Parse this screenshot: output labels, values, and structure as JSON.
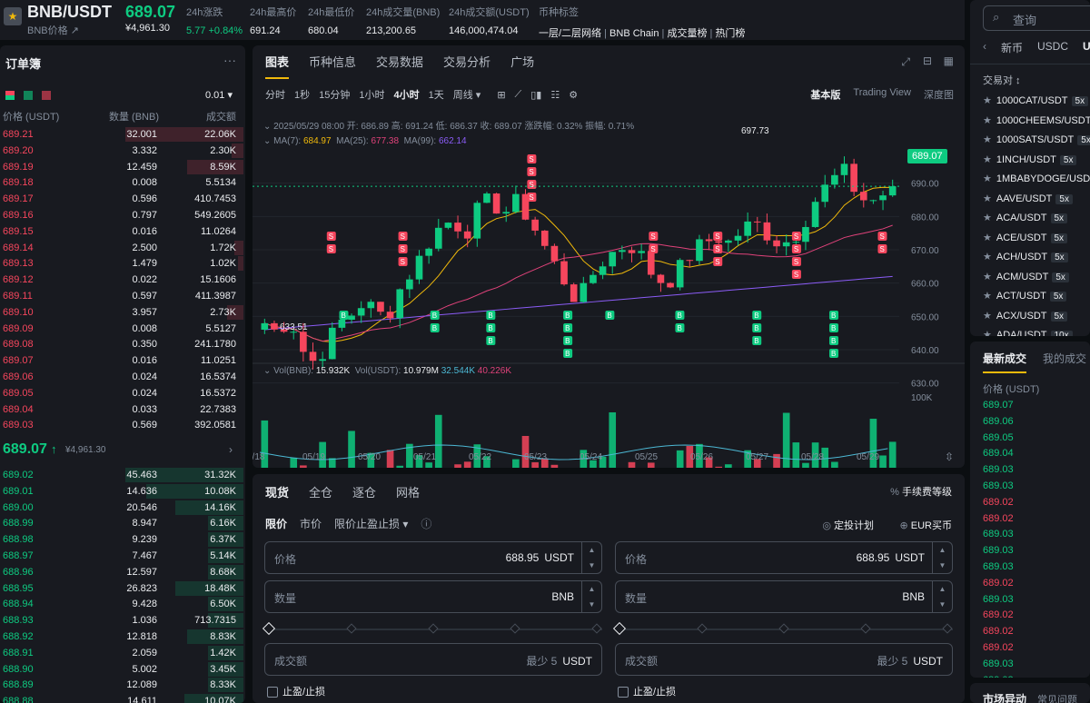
{
  "header": {
    "pair": "BNB/USDT",
    "pair_sub": "BNB价格",
    "last_price": "689.07",
    "last_price_fiat": "¥4,961.30",
    "change_label": "24h涨跌",
    "change_value": "5.77 +0.84%",
    "high_label": "24h最高价",
    "high_value": "691.24",
    "low_label": "24h最低价",
    "low_value": "680.04",
    "vol_base_label": "24h成交量(BNB)",
    "vol_base_value": "213,200.65",
    "vol_quote_label": "24h成交额(USDT)",
    "vol_quote_value": "146,000,474.04",
    "tags_label": "币种标签",
    "tags": [
      "一层/二层网络",
      "BNB Chain",
      "成交量榜",
      "热门榜"
    ]
  },
  "orderbook": {
    "title": "订单簿",
    "more": "···",
    "tick": "0.01",
    "col_price": "价格 (USDT)",
    "col_qty": "数量 (BNB)",
    "col_total": "成交额",
    "asks": [
      {
        "p": "689.21",
        "q": "32.001",
        "t": "22.06K",
        "d": 1.0
      },
      {
        "p": "689.20",
        "q": "3.332",
        "t": "2.30K",
        "d": 0.1
      },
      {
        "p": "689.19",
        "q": "12.459",
        "t": "8.59K",
        "d": 0.48
      },
      {
        "p": "689.18",
        "q": "0.008",
        "t": "5.5134",
        "d": 0
      },
      {
        "p": "689.17",
        "q": "0.596",
        "t": "410.7453",
        "d": 0
      },
      {
        "p": "689.16",
        "q": "0.797",
        "t": "549.2605",
        "d": 0
      },
      {
        "p": "689.15",
        "q": "0.016",
        "t": "11.0264",
        "d": 0
      },
      {
        "p": "689.14",
        "q": "2.500",
        "t": "1.72K",
        "d": 0.08
      },
      {
        "p": "689.13",
        "q": "1.479",
        "t": "1.02K",
        "d": 0.05
      },
      {
        "p": "689.12",
        "q": "0.022",
        "t": "15.1606",
        "d": 0
      },
      {
        "p": "689.11",
        "q": "0.597",
        "t": "411.3987",
        "d": 0
      },
      {
        "p": "689.10",
        "q": "3.957",
        "t": "2.73K",
        "d": 0.14
      },
      {
        "p": "689.09",
        "q": "0.008",
        "t": "5.5127",
        "d": 0
      },
      {
        "p": "689.08",
        "q": "0.350",
        "t": "241.1780",
        "d": 0
      },
      {
        "p": "689.07",
        "q": "0.016",
        "t": "11.0251",
        "d": 0
      },
      {
        "p": "689.06",
        "q": "0.024",
        "t": "16.5374",
        "d": 0
      },
      {
        "p": "689.05",
        "q": "0.024",
        "t": "16.5372",
        "d": 0
      },
      {
        "p": "689.04",
        "q": "0.033",
        "t": "22.7383",
        "d": 0
      },
      {
        "p": "689.03",
        "q": "0.569",
        "t": "392.0581",
        "d": 0
      }
    ],
    "mid_price": "689.07",
    "mid_arrow": "↑",
    "mid_fiat": "¥4,961.30",
    "bids": [
      {
        "p": "689.02",
        "q": "45.463",
        "t": "31.32K",
        "d": 1.0
      },
      {
        "p": "689.01",
        "q": "14.636",
        "t": "10.08K",
        "d": 0.82
      },
      {
        "p": "689.00",
        "q": "20.546",
        "t": "14.16K",
        "d": 0.58
      },
      {
        "p": "688.99",
        "q": "8.947",
        "t": "6.16K",
        "d": 0.3
      },
      {
        "p": "688.98",
        "q": "9.239",
        "t": "6.37K",
        "d": 0.3
      },
      {
        "p": "688.97",
        "q": "7.467",
        "t": "5.14K",
        "d": 0.3
      },
      {
        "p": "688.96",
        "q": "12.597",
        "t": "8.68K",
        "d": 0.3
      },
      {
        "p": "688.95",
        "q": "26.823",
        "t": "18.48K",
        "d": 0.58
      },
      {
        "p": "688.94",
        "q": "9.428",
        "t": "6.50K",
        "d": 0.3
      },
      {
        "p": "688.93",
        "q": "1.036",
        "t": "713.7315",
        "d": 0.3
      },
      {
        "p": "688.92",
        "q": "12.818",
        "t": "8.83K",
        "d": 0.48
      },
      {
        "p": "688.91",
        "q": "2.059",
        "t": "1.42K",
        "d": 0.3
      },
      {
        "p": "688.90",
        "q": "5.002",
        "t": "3.45K",
        "d": 0.3
      },
      {
        "p": "688.89",
        "q": "12.089",
        "t": "8.33K",
        "d": 0.3
      },
      {
        "p": "688.88",
        "q": "14.611",
        "t": "10.07K",
        "d": 0.5
      }
    ]
  },
  "chart_panel": {
    "tabs": [
      "图表",
      "币种信息",
      "交易数据",
      "交易分析",
      "广场"
    ],
    "intervals": [
      "分时",
      "1秒",
      "15分钟",
      "1小时",
      "4小时",
      "1天",
      "周线"
    ],
    "active_interval": "4小时",
    "views": [
      "基本版",
      "Trading View",
      "深度图"
    ],
    "ohlc": "2025/05/29 08:00  开: 686.89  高: 691.24  低: 686.37  收: 689.07  涨跌幅: 0.32%  振幅: 0.71%",
    "ma_label7": "MA(7):",
    "ma_val7": "684.97",
    "ma_label25": "MA(25):",
    "ma_val25": "677.38",
    "ma_label99": "MA(99):",
    "ma_val99": "662.14",
    "vol_label": "Vol(BNB):",
    "vol_val": "15.932K",
    "volq_label": "Vol(USDT):",
    "volq_val": "10.979M",
    "vol_ma1": "32.544K",
    "vol_ma2": "40.226K",
    "price_tag": "689.07",
    "max_label": "697.73",
    "min_label": "633.51",
    "vol_axis_label": "100K",
    "marker_sell": "S",
    "marker_buy": "B"
  },
  "chart_data": {
    "type": "candlestick",
    "y_ticks": [
      690,
      680,
      670,
      660,
      650,
      640,
      630
    ],
    "ylim": [
      625,
      700
    ],
    "x_labels": [
      "5/18",
      "05/19",
      "05/20",
      "05/21",
      "05/22",
      "05/23",
      "05/24",
      "05/25",
      "05/26",
      "05/27",
      "05/28",
      "05/29"
    ],
    "colors": {
      "up": "#0ecb81",
      "down": "#f6465d",
      "ma7": "#f0b90b",
      "ma25": "#e0427a",
      "ma99": "#8b5cf6"
    }
  },
  "trade": {
    "tabs": [
      "现货",
      "全仓",
      "逐仓",
      "网格"
    ],
    "fee_label": "手续费等级",
    "order_types": [
      "限价",
      "市价",
      "限价止盈止损 ▾"
    ],
    "dca_label": "定投计划",
    "eur_label": "EUR买币",
    "price_label": "价格",
    "price_value": "688.95",
    "price_unit": "USDT",
    "qty_label": "数量",
    "qty_unit": "BNB",
    "total_label": "成交额",
    "total_hint": "最少 5",
    "total_unit": "USDT",
    "tpsl_label": "止盈/止损"
  },
  "markets": {
    "search_placeholder": "查询",
    "tabs": [
      "新币",
      "USDC",
      "U"
    ],
    "pair_header": "交易对 ↕",
    "pairs": [
      {
        "n": "1000CAT/USDT",
        "l": "5x"
      },
      {
        "n": "1000CHEEMS/USDT",
        "l": ""
      },
      {
        "n": "1000SATS/USDT",
        "l": "5x"
      },
      {
        "n": "1INCH/USDT",
        "l": "5x"
      },
      {
        "n": "1MBABYDOGE/USDT",
        "l": ""
      },
      {
        "n": "AAVE/USDT",
        "l": "5x"
      },
      {
        "n": "ACA/USDT",
        "l": "5x"
      },
      {
        "n": "ACE/USDT",
        "l": "5x"
      },
      {
        "n": "ACH/USDT",
        "l": "5x"
      },
      {
        "n": "ACM/USDT",
        "l": "5x"
      },
      {
        "n": "ACT/USDT",
        "l": "5x"
      },
      {
        "n": "ACX/USDT",
        "l": "5x"
      },
      {
        "n": "ADA/USDT",
        "l": "10x"
      }
    ]
  },
  "trades": {
    "tabs": [
      "最新成交",
      "我的成交"
    ],
    "price_header": "价格 (USDT)",
    "list": [
      {
        "p": "689.07",
        "s": "up"
      },
      {
        "p": "689.06",
        "s": "up"
      },
      {
        "p": "689.05",
        "s": "up"
      },
      {
        "p": "689.04",
        "s": "up"
      },
      {
        "p": "689.03",
        "s": "up"
      },
      {
        "p": "689.03",
        "s": "up"
      },
      {
        "p": "689.02",
        "s": "down"
      },
      {
        "p": "689.02",
        "s": "down"
      },
      {
        "p": "689.03",
        "s": "up"
      },
      {
        "p": "689.03",
        "s": "up"
      },
      {
        "p": "689.03",
        "s": "up"
      },
      {
        "p": "689.02",
        "s": "down"
      },
      {
        "p": "689.03",
        "s": "up"
      },
      {
        "p": "689.02",
        "s": "down"
      },
      {
        "p": "689.02",
        "s": "down"
      },
      {
        "p": "689.02",
        "s": "down"
      },
      {
        "p": "689.03",
        "s": "up"
      },
      {
        "p": "689.03",
        "s": "up"
      }
    ]
  },
  "movers": {
    "title": "市场异动",
    "link": "常见问题"
  }
}
